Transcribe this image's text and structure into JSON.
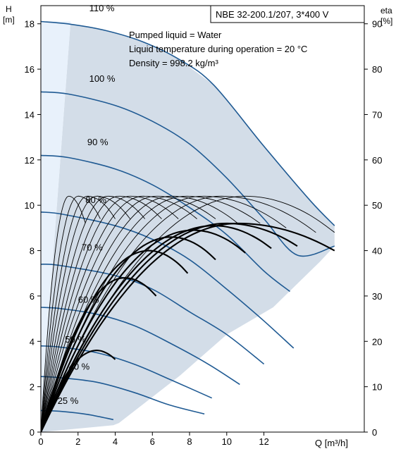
{
  "chart_data": {
    "type": "line",
    "title": "NBE 32-200.1/207, 3*400 V",
    "annotations": [
      "Pumped liquid = Water",
      "Liquid temperature during operation = 20 °C",
      "Density = 998.2 kg/m³"
    ],
    "xlabel": "Q [m³/h]",
    "ylabel_left": "H",
    "ylabel_left_unit": "[m]",
    "ylabel_right": "eta",
    "ylabel_right_unit": "[%]",
    "xlim": [
      0,
      17.4
    ],
    "ylim_left": [
      0,
      18.8
    ],
    "ylim_right": [
      0,
      94
    ],
    "x_ticks": [
      "0",
      "2",
      "4",
      "6",
      "8",
      "10",
      "12"
    ],
    "y_left_ticks": [
      "0",
      "2",
      "4",
      "6",
      "8",
      "10",
      "12",
      "14",
      "16",
      "18"
    ],
    "y_right_ticks": [
      "0",
      "10",
      "20",
      "30",
      "40",
      "50",
      "60",
      "70",
      "80",
      "90"
    ],
    "grid": false,
    "colors": {
      "head_curve": "#1f5a93",
      "operating_area": "#d3dde8",
      "min_flow_area": "#e8f1fb",
      "efficiency_curve": "#000000"
    },
    "head_curves": [
      {
        "label": "110 %",
        "points": [
          [
            0,
            18.1
          ],
          [
            1.6,
            17.98
          ],
          [
            3.5,
            17.7
          ],
          [
            5.5,
            17.2
          ],
          [
            7.5,
            16.4
          ],
          [
            9.3,
            15.3
          ],
          [
            12,
            12.6
          ],
          [
            14.5,
            10.2
          ],
          [
            15.8,
            9.1
          ]
        ]
      },
      {
        "label": "100 %",
        "points": [
          [
            0,
            15.0
          ],
          [
            1.5,
            14.9
          ],
          [
            4,
            14.4
          ],
          [
            6,
            13.7
          ],
          [
            8,
            12.7
          ],
          [
            10,
            11.2
          ],
          [
            12,
            9.4
          ],
          [
            13.8,
            7.8
          ],
          [
            15.8,
            8.2
          ]
        ]
      },
      {
        "label": "90 %",
        "points": [
          [
            0,
            12.2
          ],
          [
            1.5,
            12.1
          ],
          [
            4,
            11.6
          ],
          [
            6,
            10.9
          ],
          [
            8,
            9.9
          ],
          [
            10,
            8.7
          ],
          [
            12,
            7.1
          ],
          [
            13.4,
            6.2
          ]
        ]
      },
      {
        "label": "80 %",
        "points": [
          [
            0,
            9.7
          ],
          [
            1.2,
            9.6
          ],
          [
            4,
            9.1
          ],
          [
            6,
            8.5
          ],
          [
            8,
            7.6
          ],
          [
            10,
            6.3
          ],
          [
            12,
            4.9
          ],
          [
            13.6,
            3.7
          ]
        ]
      },
      {
        "label": "70 %",
        "points": [
          [
            0,
            7.4
          ],
          [
            1.0,
            7.35
          ],
          [
            4,
            6.9
          ],
          [
            6,
            6.3
          ],
          [
            8,
            5.3
          ],
          [
            10,
            4.3
          ],
          [
            12,
            3.0
          ]
        ]
      },
      {
        "label": "60 %",
        "points": [
          [
            0,
            5.5
          ],
          [
            1.0,
            5.45
          ],
          [
            3,
            5.2
          ],
          [
            5,
            4.7
          ],
          [
            7,
            3.9
          ],
          [
            9,
            3.0
          ],
          [
            10.7,
            2.1
          ]
        ]
      },
      {
        "label": "50 %",
        "points": [
          [
            0,
            3.8
          ],
          [
            1.0,
            3.75
          ],
          [
            3,
            3.5
          ],
          [
            5,
            3.0
          ],
          [
            7,
            2.3
          ],
          [
            9.2,
            1.5
          ]
        ]
      },
      {
        "label": "40 %",
        "points": [
          [
            0,
            2.45
          ],
          [
            1.0,
            2.4
          ],
          [
            3,
            2.2
          ],
          [
            5,
            1.75
          ],
          [
            6.9,
            1.2
          ],
          [
            8.8,
            0.8
          ]
        ]
      },
      {
        "label": "25 %",
        "points": [
          [
            0,
            0.95
          ],
          [
            1.0,
            0.92
          ],
          [
            2.5,
            0.78
          ],
          [
            3.9,
            0.55
          ]
        ]
      }
    ],
    "operating_area": {
      "min_flow_line": [
        [
          0,
          0
        ],
        [
          0.5,
          6
        ],
        [
          1.6,
          18.1
        ]
      ],
      "max_flow_line": [
        [
          15.8,
          8.2
        ],
        [
          15.0,
          7.5
        ],
        [
          12.5,
          5.5
        ],
        [
          10,
          4.3
        ],
        [
          7.5,
          2.5
        ],
        [
          4.2,
          0.4
        ],
        [
          3.9,
          0.3
        ],
        [
          0,
          0
        ]
      ]
    },
    "efficiency_curves": [
      {
        "peak_q": 1.5,
        "end_q": 2.4,
        "peak_eta": 52,
        "end_eta": 46
      },
      {
        "peak_q": 2.0,
        "end_q": 3.2,
        "peak_eta": 52,
        "end_eta": 47
      },
      {
        "peak_q": 2.5,
        "end_q": 4.0,
        "peak_eta": 52,
        "end_eta": 47
      },
      {
        "peak_q": 3.0,
        "end_q": 4.8,
        "peak_eta": 52,
        "end_eta": 47
      },
      {
        "peak_q": 3.6,
        "end_q": 5.6,
        "peak_eta": 52,
        "end_eta": 47
      },
      {
        "peak_q": 4.2,
        "end_q": 6.5,
        "peak_eta": 52,
        "end_eta": 47
      },
      {
        "peak_q": 4.8,
        "end_q": 7.4,
        "peak_eta": 52,
        "end_eta": 47
      },
      {
        "peak_q": 5.5,
        "end_q": 8.4,
        "peak_eta": 52,
        "end_eta": 47
      },
      {
        "peak_q": 6.2,
        "end_q": 9.4,
        "peak_eta": 52,
        "end_eta": 47
      },
      {
        "peak_q": 7.0,
        "end_q": 10.6,
        "peak_eta": 52,
        "end_eta": 46
      },
      {
        "peak_q": 7.8,
        "end_q": 11.8,
        "peak_eta": 52,
        "end_eta": 46
      },
      {
        "peak_q": 8.7,
        "end_q": 13.2,
        "peak_eta": 52,
        "end_eta": 45
      },
      {
        "peak_q": 9.7,
        "end_q": 14.8,
        "peak_eta": 52,
        "end_eta": 44
      },
      {
        "peak_q": 11.0,
        "end_q": 15.8,
        "peak_eta": 52,
        "end_eta": 44
      },
      {
        "peak_q": 3.0,
        "end_q": 4.0,
        "peak_eta": 18,
        "end_eta": 16
      },
      {
        "peak_q": 4.5,
        "end_q": 6.2,
        "peak_eta": 34,
        "end_eta": 30
      },
      {
        "peak_q": 5.8,
        "end_q": 7.9,
        "peak_eta": 40,
        "end_eta": 35
      },
      {
        "peak_q": 7.0,
        "end_q": 9.4,
        "peak_eta": 43,
        "end_eta": 38
      },
      {
        "peak_q": 8.2,
        "end_q": 11.0,
        "peak_eta": 44.5,
        "end_eta": 39.5
      },
      {
        "peak_q": 9.3,
        "end_q": 12.4,
        "peak_eta": 45.5,
        "end_eta": 40.5
      },
      {
        "peak_q": 10.0,
        "end_q": 13.8,
        "peak_eta": 46,
        "end_eta": 41
      },
      {
        "peak_q": 10.6,
        "end_q": 15.8,
        "peak_eta": 46,
        "end_eta": 40
      }
    ]
  }
}
